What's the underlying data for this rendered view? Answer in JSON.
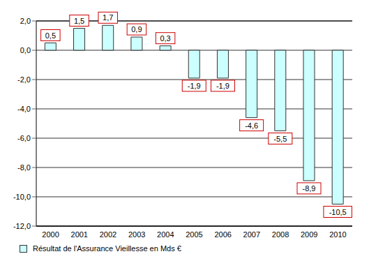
{
  "chart_data": {
    "type": "bar",
    "categories": [
      "2000",
      "2001",
      "2002",
      "2003",
      "2004",
      "2005",
      "2006",
      "2007",
      "2008",
      "2009",
      "2010"
    ],
    "series": [
      {
        "name": "Résultat de l'Assurance Vieillesse en Mds €",
        "color": "#ccffff",
        "values": [
          0.5,
          1.5,
          1.7,
          0.9,
          0.3,
          -1.9,
          -1.9,
          -4.6,
          -5.5,
          -8.9,
          -10.5
        ],
        "value_labels": [
          "0,5",
          "1,5",
          "1,7",
          "0,9",
          "0,3",
          "-1,9",
          "-1,9",
          "-4,6",
          "-5,5",
          "-8,9",
          "-10,5"
        ]
      }
    ],
    "ylim": [
      -12,
      2
    ],
    "yticks": [
      {
        "value": -12,
        "label": "-12,0"
      },
      {
        "value": -10,
        "label": "-10,0"
      },
      {
        "value": -8,
        "label": "-8,0"
      },
      {
        "value": -6,
        "label": "-6,0"
      },
      {
        "value": -4,
        "label": "-4,0"
      },
      {
        "value": -2,
        "label": "-2,0"
      },
      {
        "value": 0,
        "label": "0,0"
      },
      {
        "value": 2,
        "label": "2,0"
      }
    ],
    "grid": true,
    "data_labels": true,
    "legend": "bottom-left"
  }
}
